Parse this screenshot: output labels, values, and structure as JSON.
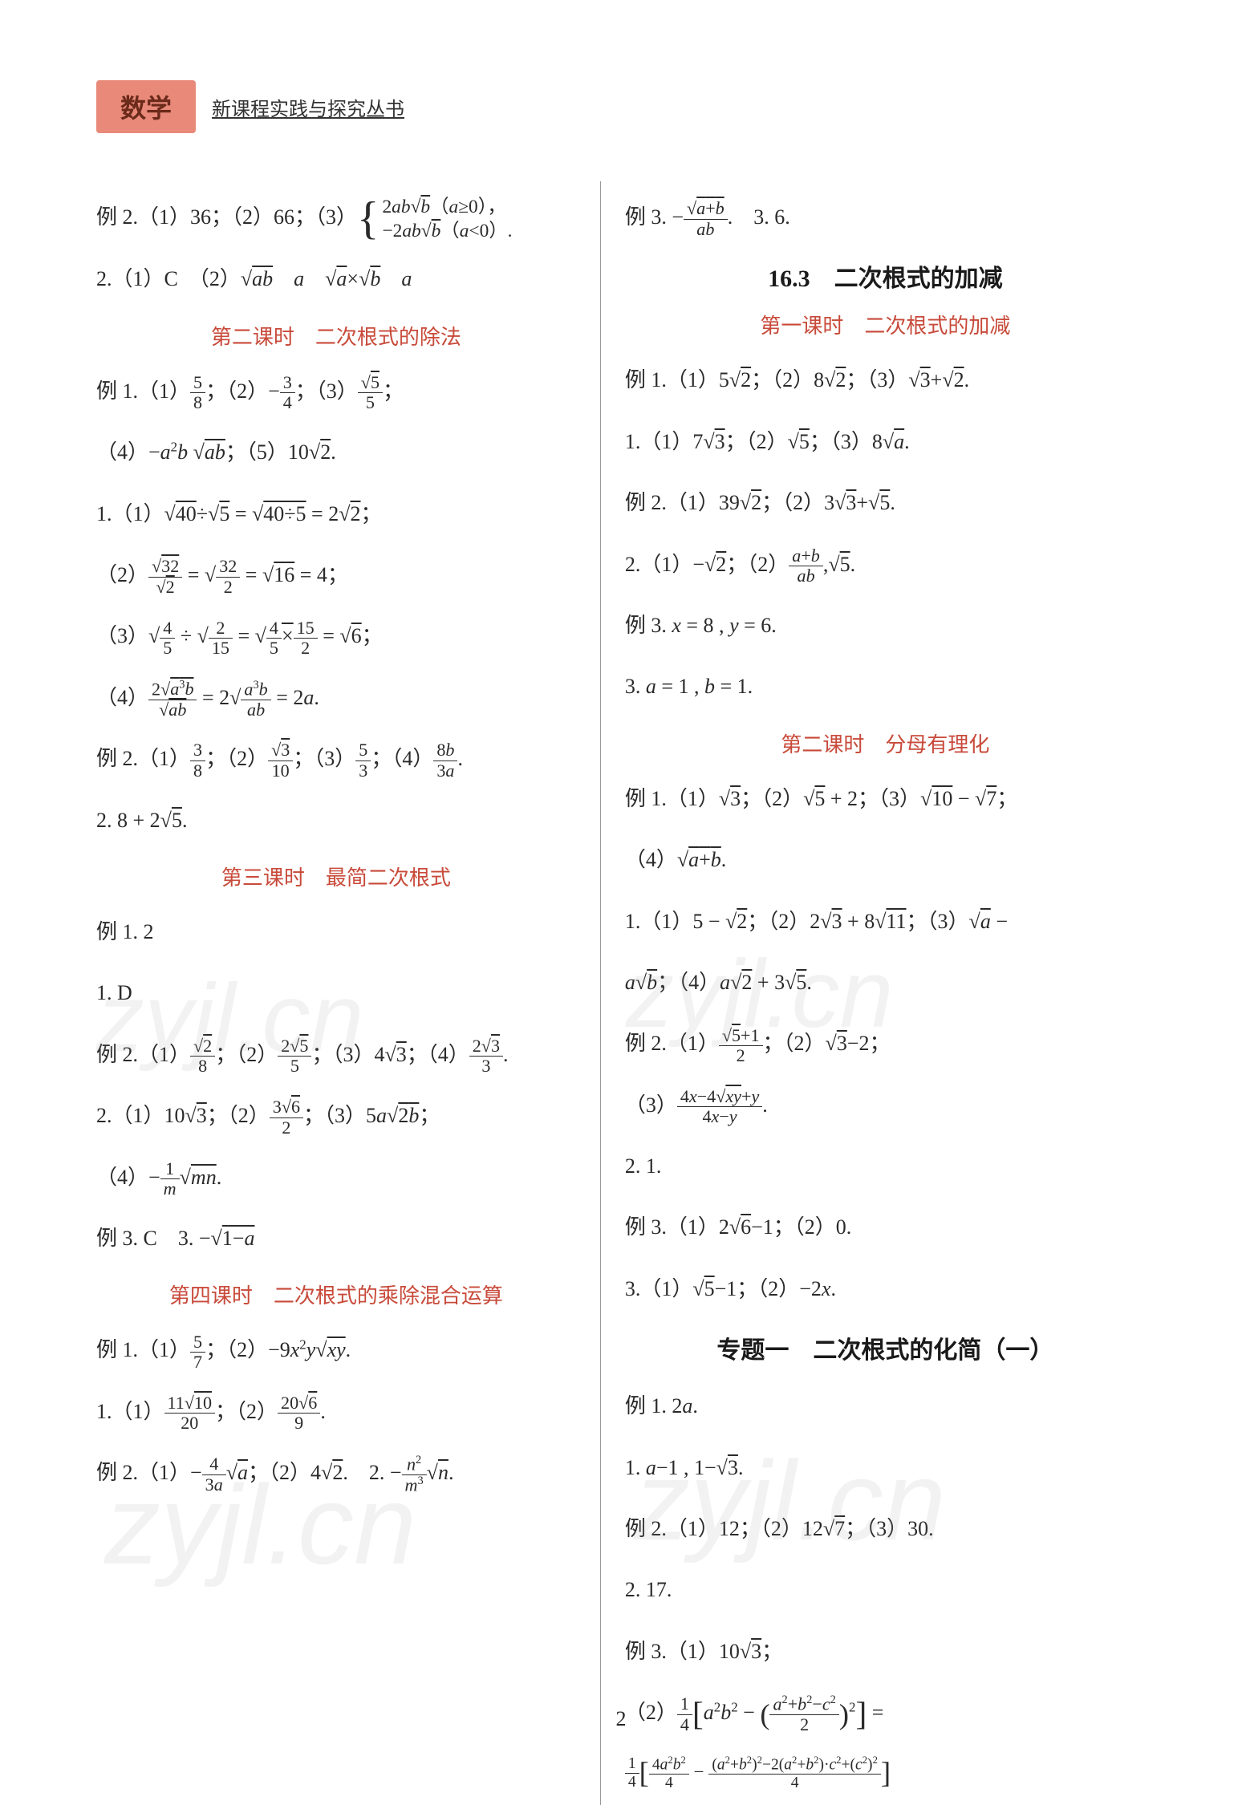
{
  "page_number": "2",
  "header": {
    "subject": "数学",
    "series": "新课程实践与探究丛书"
  },
  "watermark_text": "zyjl.cn",
  "colors": {
    "subject_bg": "#e8897a",
    "subject_text": "#6b2a1a",
    "lesson_header": "#c84a3a",
    "text": "#2a2a2a",
    "divider": "#999999",
    "watermark": "rgba(150,150,150,0.12)",
    "background": "#ffffff"
  },
  "typography": {
    "body_fontsize": 26,
    "header_fontsize": 30,
    "subject_fontsize": 32,
    "series_fontsize": 24,
    "font_family": "SimSun"
  },
  "left_column": {
    "lines": [
      {
        "type": "math",
        "label": "例 2.",
        "content": "（1）36；（2）66；（3）{2ab√b(a≥0), -2ab√b(a<0)."
      },
      {
        "type": "math",
        "label": "2.",
        "content": "（1）C　（2）√ab　a　√a×√b　a"
      },
      {
        "type": "lesson",
        "text": "第二课时　二次根式的除法"
      },
      {
        "type": "math",
        "label": "例 1.",
        "content": "（1）5/8；（2）-3/4；（3）√5/5；"
      },
      {
        "type": "math",
        "label": "",
        "content": "（4）-a²b√ab；（5）10√2."
      },
      {
        "type": "math",
        "label": "1.",
        "content": "（1）√40÷√5=√(40÷5)=2√2；"
      },
      {
        "type": "math",
        "label": "",
        "content": "（2）√32/√2=√(32/2)=√16=4；"
      },
      {
        "type": "math",
        "label": "",
        "content": "（3）√(4/5)÷√(2/15)=√(4/5×15/2)=√6；"
      },
      {
        "type": "math",
        "label": "",
        "content": "（4）2√(a³b)/√(ab)=2√(a³b/ab)=2a."
      },
      {
        "type": "math",
        "label": "例 2.",
        "content": "（1）3/8；（2）√3/10；（3）5/3；（4）8b/3a."
      },
      {
        "type": "math",
        "label": "2.",
        "content": "8+2√5."
      },
      {
        "type": "lesson",
        "text": "第三课时　最简二次根式"
      },
      {
        "type": "math",
        "label": "例 1.",
        "content": "2"
      },
      {
        "type": "math",
        "label": "1.",
        "content": "D"
      },
      {
        "type": "math",
        "label": "例 2.",
        "content": "（1）√2/8；（2）2√5/5；（3）4√3；（4）2√3/3."
      },
      {
        "type": "math",
        "label": "2.",
        "content": "（1）10√3；（2）3√6/2；（3）5a√(2b)；"
      },
      {
        "type": "math",
        "label": "",
        "content": "（4）-(1/m)√(mn)."
      },
      {
        "type": "math",
        "label": "例 3.",
        "content": "C　3. -√(1-a)"
      },
      {
        "type": "lesson",
        "text": "第四课时　二次根式的乘除混合运算"
      },
      {
        "type": "math",
        "label": "例 1.",
        "content": "（1）5/7；（2）-9x²y√(xy)."
      },
      {
        "type": "math",
        "label": "1.",
        "content": "（1）11√10/20；（2）20√6/9."
      },
      {
        "type": "math",
        "label": "例 2.",
        "content": "（1）-(4/3a)√a；（2）4√2.　2. -(n²/m³)√n."
      }
    ]
  },
  "right_column": {
    "lines": [
      {
        "type": "math",
        "label": "例 3.",
        "content": "-√(a+b)/ab.　3. 6."
      },
      {
        "type": "section",
        "text": "16.3　二次根式的加减"
      },
      {
        "type": "lesson",
        "text": "第一课时　二次根式的加减"
      },
      {
        "type": "math",
        "label": "例 1.",
        "content": "（1）5√2；（2）8√2；（3）√3+√2."
      },
      {
        "type": "math",
        "label": "1.",
        "content": "（1）7√3；（2）√5；（3）8√a."
      },
      {
        "type": "math",
        "label": "例 2.",
        "content": "（1）39√2；（2）3√3+√5."
      },
      {
        "type": "math",
        "label": "2.",
        "content": "（1）-√2；（2）(a+b)/ab,√5."
      },
      {
        "type": "math",
        "label": "例 3.",
        "content": "x=8, y=6."
      },
      {
        "type": "math",
        "label": "3.",
        "content": "a=1, b=1."
      },
      {
        "type": "lesson",
        "text": "第二课时　分母有理化"
      },
      {
        "type": "math",
        "label": "例 1.",
        "content": "（1）√3；（2）√5+2；（3）√10-√7；"
      },
      {
        "type": "math",
        "label": "",
        "content": "（4）√(a+b)."
      },
      {
        "type": "math",
        "label": "1.",
        "content": "（1）5-√2；（2）2√3+8√11；（3）√a-"
      },
      {
        "type": "math",
        "label": "",
        "content": "a√b；（4）a√2+3√5."
      },
      {
        "type": "math",
        "label": "例 2.",
        "content": "（1）(√5+1)/2；（2）√3-2；"
      },
      {
        "type": "math",
        "label": "",
        "content": "（3）(4x-4√(xy)+y)/(4x-y)."
      },
      {
        "type": "math",
        "label": "2.",
        "content": "1."
      },
      {
        "type": "math",
        "label": "例 3.",
        "content": "（1）2√6-1；（2）0."
      },
      {
        "type": "math",
        "label": "3.",
        "content": "（1）√5-1；（2）-2x."
      },
      {
        "type": "section",
        "text": "专题一　二次根式的化简（一）"
      },
      {
        "type": "math",
        "label": "例 1.",
        "content": "2a."
      },
      {
        "type": "math",
        "label": "1.",
        "content": "a-1, 1-√3."
      },
      {
        "type": "math",
        "label": "例 2.",
        "content": "（1）12；（2）12√7；（3）30."
      },
      {
        "type": "math",
        "label": "2.",
        "content": "17."
      },
      {
        "type": "math",
        "label": "例 3.",
        "content": "（1）10√3；"
      },
      {
        "type": "math",
        "label": "",
        "content": "（2）(1/4)[a²b²-((a²+b²-c²)/2)²]="
      },
      {
        "type": "math",
        "label": "",
        "content": "(1/4)[4a²b²/4 - ((a²+b²)²-2(a²+b²)·c²+(c²)²)/4]"
      }
    ]
  }
}
